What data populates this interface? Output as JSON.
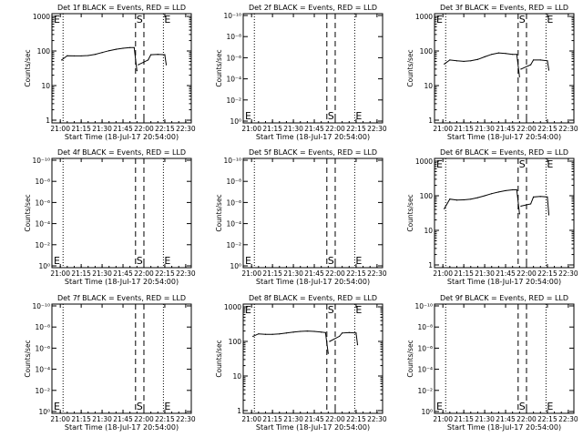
{
  "figure": {
    "xlabel": "Start Time (18-Jul-17 20:54:00)",
    "ylabel": "Counts/sec",
    "x_ticks": [
      "21:00",
      "21:15",
      "21:30",
      "21:45",
      "22:00",
      "22:15",
      "22:30"
    ],
    "marker_labels": {
      "start": "S",
      "end": "E"
    },
    "colors": {
      "events": "#000000",
      "lld": "#ff0000",
      "axes": "#000000"
    }
  },
  "chart_data": [
    {
      "type": "line",
      "scale": "log",
      "title": "Det 1f BLACK = Events, RED = LLD",
      "y_ticks": [
        "1",
        "10",
        "100",
        "1000"
      ],
      "ylim": [
        1,
        1000
      ],
      "series": [
        {
          "x": [
            "21:01",
            "21:05",
            "21:10",
            "21:15",
            "21:20",
            "21:25",
            "21:30",
            "21:35",
            "21:40",
            "21:45",
            "21:50",
            "21:53",
            "21:55",
            "21:56",
            "22:03",
            "22:05",
            "22:10",
            "22:15",
            "22:16"
          ],
          "values": [
            55,
            73,
            72,
            72,
            74,
            80,
            90,
            102,
            112,
            120,
            125,
            125,
            27,
            40,
            55,
            78,
            80,
            78,
            40
          ]
        }
      ],
      "dashed_markers": [
        "21:54",
        "22:00"
      ],
      "dotted_markers": [
        "21:02",
        "22:14"
      ],
      "marker_label_pos": "top"
    },
    {
      "type": "line",
      "scale": "log",
      "title": "Det 2f BLACK = Events, RED = LLD",
      "y_ticks": [
        "10⁰",
        "10⁻²",
        "10⁻⁴",
        "10⁻⁶",
        "10⁻⁸",
        "10⁻¹⁰"
      ],
      "series": [],
      "dashed_markers": [
        "21:54",
        "22:00"
      ],
      "dotted_markers": [
        "21:02",
        "22:14"
      ],
      "marker_label_pos": "bottom"
    },
    {
      "type": "line",
      "scale": "log",
      "title": "Det 3f BLACK = Events, RED = LLD",
      "y_ticks": [
        "1",
        "10",
        "100",
        "1000"
      ],
      "ylim": [
        1,
        1000
      ],
      "series": [
        {
          "x": [
            "21:01",
            "21:05",
            "21:10",
            "21:15",
            "21:20",
            "21:25",
            "21:30",
            "21:35",
            "21:40",
            "21:45",
            "21:50",
            "21:53",
            "21:55",
            "21:56",
            "22:03",
            "22:05",
            "22:10",
            "22:15",
            "22:16"
          ],
          "values": [
            42,
            55,
            52,
            50,
            52,
            57,
            68,
            80,
            88,
            85,
            80,
            80,
            18,
            30,
            40,
            55,
            55,
            52,
            28
          ]
        }
      ],
      "dashed_markers": [
        "21:54",
        "22:00"
      ],
      "dotted_markers": [
        "21:02",
        "22:14"
      ],
      "marker_label_pos": "top"
    },
    {
      "type": "line",
      "scale": "log",
      "title": "Det 4f BLACK = Events, RED = LLD",
      "y_ticks": [
        "10⁰",
        "10⁻²",
        "10⁻⁴",
        "10⁻⁶",
        "10⁻⁸",
        "10⁻¹⁰"
      ],
      "series": [],
      "dashed_markers": [
        "21:54",
        "22:00"
      ],
      "dotted_markers": [
        "21:02",
        "22:14"
      ],
      "marker_label_pos": "bottom"
    },
    {
      "type": "line",
      "scale": "log",
      "title": "Det 5f BLACK = Events, RED = LLD",
      "y_ticks": [
        "10⁰",
        "10⁻²",
        "10⁻⁴",
        "10⁻⁶",
        "10⁻⁸",
        "10⁻¹⁰"
      ],
      "series": [],
      "dashed_markers": [
        "21:54",
        "22:00"
      ],
      "dotted_markers": [
        "21:02",
        "22:14"
      ],
      "marker_label_pos": "bottom"
    },
    {
      "type": "line",
      "scale": "log",
      "title": "Det 6f BLACK = Events, RED = LLD",
      "y_ticks": [
        "1",
        "10",
        "100",
        "1000"
      ],
      "ylim": [
        1,
        1000
      ],
      "series": [
        {
          "x": [
            "21:01",
            "21:05",
            "21:10",
            "21:15",
            "21:20",
            "21:25",
            "21:30",
            "21:35",
            "21:40",
            "21:45",
            "21:50",
            "21:53",
            "21:55",
            "21:56",
            "22:03",
            "22:05",
            "22:10",
            "22:15",
            "22:16"
          ],
          "values": [
            42,
            80,
            75,
            76,
            80,
            88,
            100,
            115,
            128,
            140,
            148,
            148,
            30,
            50,
            58,
            92,
            95,
            92,
            28
          ]
        }
      ],
      "dashed_markers": [
        "21:54",
        "22:00"
      ],
      "dotted_markers": [
        "21:02",
        "22:14"
      ],
      "marker_label_pos": "top"
    },
    {
      "type": "line",
      "scale": "log",
      "title": "Det 7f BLACK = Events, RED = LLD",
      "y_ticks": [
        "10⁰",
        "10⁻²",
        "10⁻⁴",
        "10⁻⁶",
        "10⁻⁸",
        "10⁻¹⁰"
      ],
      "series": [],
      "dashed_markers": [
        "21:54",
        "22:00"
      ],
      "dotted_markers": [
        "21:02",
        "22:14"
      ],
      "marker_label_pos": "bottom"
    },
    {
      "type": "line",
      "scale": "log",
      "title": "Det 8f BLACK = Events, RED = LLD",
      "y_ticks": [
        "1",
        "10",
        "100",
        "1000"
      ],
      "ylim": [
        1,
        1000
      ],
      "series": [
        {
          "x": [
            "21:01",
            "21:05",
            "21:10",
            "21:15",
            "21:20",
            "21:25",
            "21:30",
            "21:35",
            "21:40",
            "21:45",
            "21:50",
            "21:53",
            "21:55",
            "21:56",
            "22:03",
            "22:05",
            "22:10",
            "22:15",
            "22:16"
          ],
          "values": [
            140,
            165,
            160,
            160,
            165,
            175,
            185,
            195,
            200,
            195,
            185,
            180,
            45,
            100,
            140,
            175,
            180,
            175,
            80
          ]
        }
      ],
      "dashed_markers": [
        "21:54",
        "22:00"
      ],
      "dotted_markers": [
        "21:02",
        "22:14"
      ],
      "marker_label_pos": "top"
    },
    {
      "type": "line",
      "scale": "log",
      "title": "Det 9f BLACK = Events, RED = LLD",
      "y_ticks": [
        "10⁰",
        "10⁻²",
        "10⁻⁴",
        "10⁻⁶",
        "10⁻⁸",
        "10⁻¹⁰"
      ],
      "series": [],
      "dashed_markers": [
        "21:54",
        "22:00"
      ],
      "dotted_markers": [
        "21:02",
        "22:14"
      ],
      "marker_label_pos": "bottom"
    }
  ]
}
